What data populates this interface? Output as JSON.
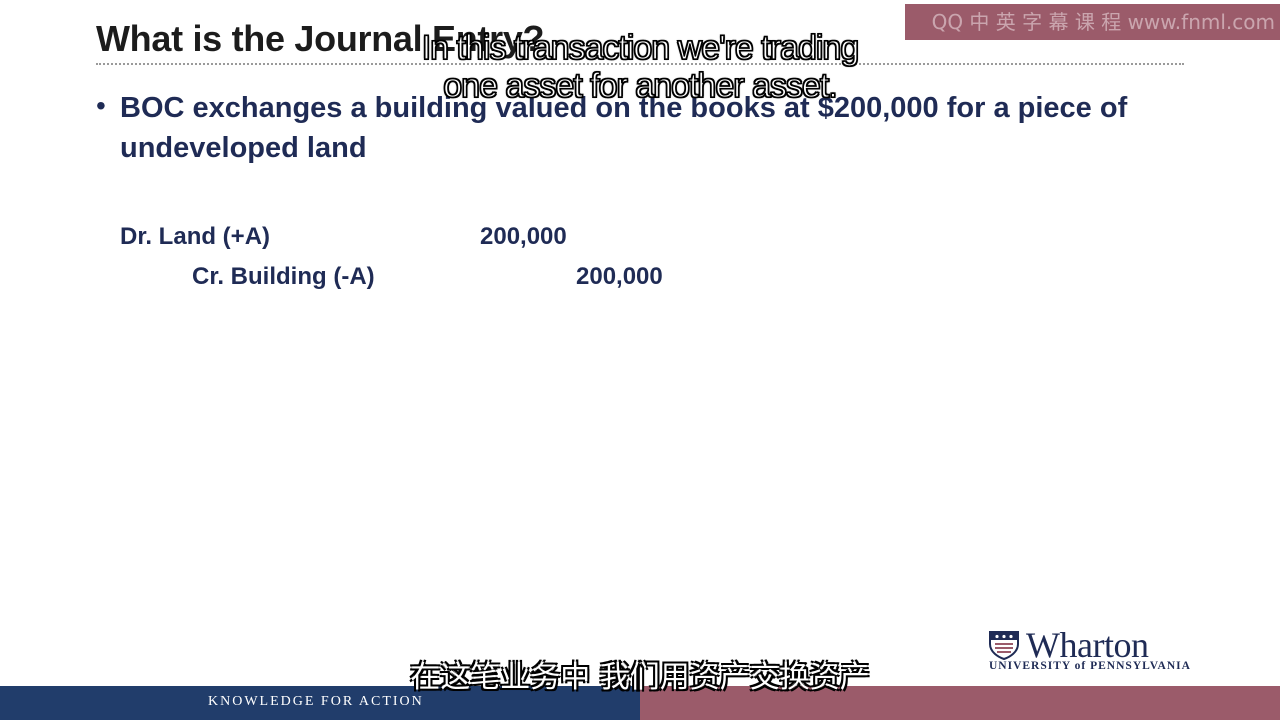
{
  "slide": {
    "title": "What is the Journal Entry?",
    "bullet": "BOC exchanges a building valued on the books at $200,000 for a piece of undeveloped land"
  },
  "journal_entry": {
    "debit_account": "Dr. Land (+A)",
    "debit_amount": "200,000",
    "credit_account": "Cr. Building (-A)",
    "credit_amount": "200,000"
  },
  "subtitles": {
    "english_line1": "In this transaction we're trading",
    "english_line2": "one asset for another asset.",
    "chinese": "在这笔业务中 我们用资产交换资产"
  },
  "watermark": "QQ 中 英 字 幕 课 程 www.fnml.com",
  "branding": {
    "logo_name": "Wharton",
    "logo_subtitle": "UNIVERSITY of PENNSYLVANIA",
    "tagline": "KNOWLEDGE FOR ACTION"
  },
  "colors": {
    "navy": "#213d6b",
    "maroon": "#9b5b6a",
    "text_blue": "#1f2b55"
  }
}
